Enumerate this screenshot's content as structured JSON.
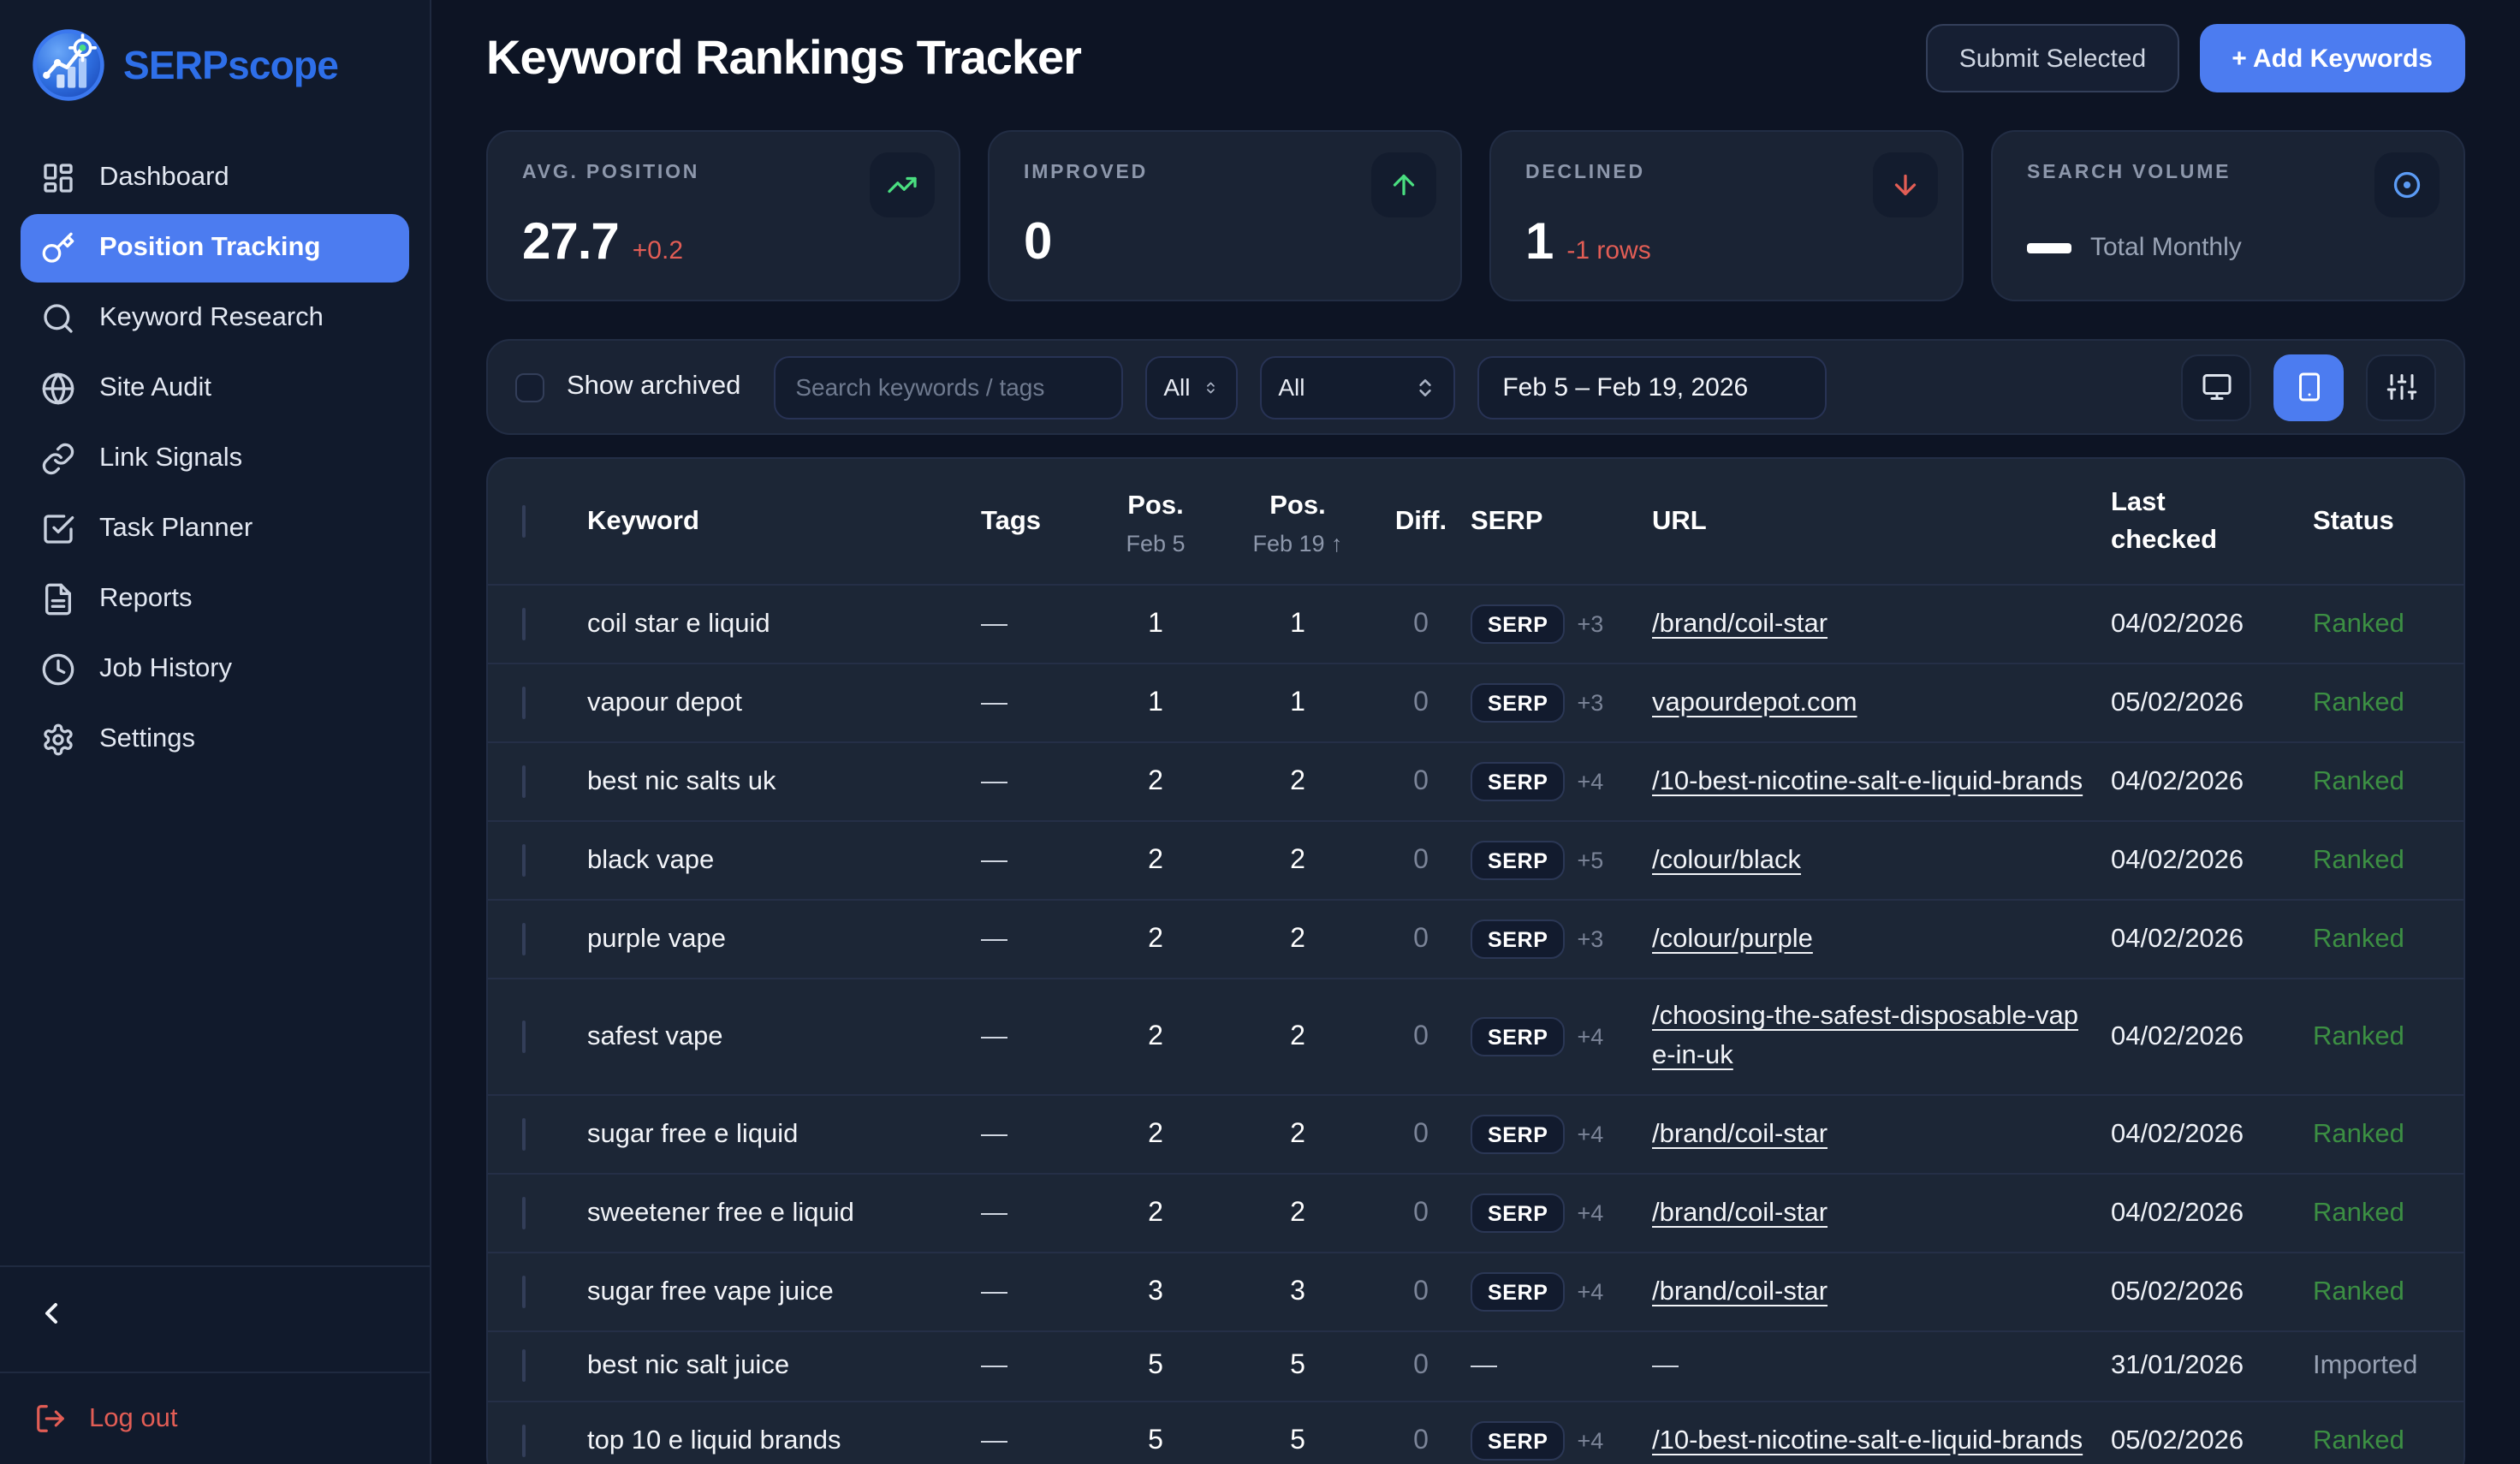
{
  "colors": {
    "accent_blue": "#4c7cf0",
    "negative_red": "#e25d55",
    "positive_green": "#4ade80",
    "status_ranked_green": "#3c8f43",
    "status_imported_gray": "#97a1b3",
    "icon_target_blue": "#5b9bf5",
    "sidebar_bg": "#111a2c",
    "card_bg": "#1a2334"
  },
  "brand": {
    "name": "SERPscope",
    "logo_icon": "chart-target-logo"
  },
  "sidebar": {
    "items": [
      {
        "label": "Dashboard",
        "icon": "dashboard-icon",
        "active": false
      },
      {
        "label": "Position Tracking",
        "icon": "key-icon",
        "active": true
      },
      {
        "label": "Keyword Research",
        "icon": "search-icon",
        "active": false
      },
      {
        "label": "Site Audit",
        "icon": "globe-icon",
        "active": false
      },
      {
        "label": "Link Signals",
        "icon": "link-icon",
        "active": false
      },
      {
        "label": "Task Planner",
        "icon": "check-square-icon",
        "active": false
      },
      {
        "label": "Reports",
        "icon": "file-icon",
        "active": false
      },
      {
        "label": "Job History",
        "icon": "clock-icon",
        "active": false
      },
      {
        "label": "Settings",
        "icon": "gear-icon",
        "active": false
      }
    ],
    "collapse_icon": "chevron-left-icon",
    "logout_label": "Log out",
    "logout_icon": "logout-icon"
  },
  "header": {
    "title": "Keyword Rankings Tracker",
    "submit_button": "Submit Selected",
    "add_button": "+ Add Keywords"
  },
  "stats": [
    {
      "label": "AVG. POSITION",
      "value": "27.7",
      "delta": "+0.2",
      "icon": "trending-up-icon"
    },
    {
      "label": "IMPROVED",
      "value": "0",
      "icon": "arrow-up-icon"
    },
    {
      "label": "DECLINED",
      "value": "1",
      "delta": "-1 rows",
      "icon": "arrow-down-icon"
    },
    {
      "label": "SEARCH VOLUME",
      "legend_label": "Total Monthly",
      "icon": "target-icon"
    }
  ],
  "filters": {
    "show_archived_label": "Show archived",
    "search_placeholder": "Search keywords / tags",
    "tag_filter_value": "All",
    "status_filter_value": "All",
    "date_range": "Feb 5 – Feb 19, 2026",
    "view_buttons": [
      "desktop",
      "mobile",
      "columns"
    ],
    "active_view": "mobile"
  },
  "table": {
    "columns": {
      "keyword": "Keyword",
      "tags": "Tags",
      "pos_a": "Pos.",
      "pos_a_sub": "Feb 5",
      "pos_b": "Pos.",
      "pos_b_sub": "Feb 19 ↑",
      "diff": "Diff.",
      "serp": "SERP",
      "url": "URL",
      "last_checked": "Last checked",
      "status": "Status"
    },
    "rows": [
      {
        "keyword": "coil star e liquid",
        "tags": "—",
        "pos_a": "1",
        "pos_b": "1",
        "diff": "0",
        "serp_label": "SERP",
        "serp_extra": "+3",
        "url": "/brand/coil-star",
        "url_link": true,
        "last_checked": "04/02/2026",
        "status": "Ranked",
        "status_color": "green"
      },
      {
        "keyword": "vapour depot",
        "tags": "—",
        "pos_a": "1",
        "pos_b": "1",
        "diff": "0",
        "serp_label": "SERP",
        "serp_extra": "+3",
        "url": "vapourdepot.com",
        "url_link": true,
        "last_checked": "05/02/2026",
        "status": "Ranked",
        "status_color": "green"
      },
      {
        "keyword": "best nic salts uk",
        "tags": "—",
        "pos_a": "2",
        "pos_b": "2",
        "diff": "0",
        "serp_label": "SERP",
        "serp_extra": "+4",
        "url": "/10-best-nicotine-salt-e-liquid-brands",
        "url_link": true,
        "last_checked": "04/02/2026",
        "status": "Ranked",
        "status_color": "green"
      },
      {
        "keyword": "black vape",
        "tags": "—",
        "pos_a": "2",
        "pos_b": "2",
        "diff": "0",
        "serp_label": "SERP",
        "serp_extra": "+5",
        "url": "/colour/black",
        "url_link": true,
        "last_checked": "04/02/2026",
        "status": "Ranked",
        "status_color": "green"
      },
      {
        "keyword": "purple vape",
        "tags": "—",
        "pos_a": "2",
        "pos_b": "2",
        "diff": "0",
        "serp_label": "SERP",
        "serp_extra": "+3",
        "url": "/colour/purple",
        "url_link": true,
        "last_checked": "04/02/2026",
        "status": "Ranked",
        "status_color": "green"
      },
      {
        "keyword": "safest vape",
        "tags": "—",
        "pos_a": "2",
        "pos_b": "2",
        "diff": "0",
        "serp_label": "SERP",
        "serp_extra": "+4",
        "url": "/choosing-the-safest-disposable-vape-in-uk",
        "url_link": true,
        "last_checked": "04/02/2026",
        "status": "Ranked",
        "status_color": "green"
      },
      {
        "keyword": "sugar free e liquid",
        "tags": "—",
        "pos_a": "2",
        "pos_b": "2",
        "diff": "0",
        "serp_label": "SERP",
        "serp_extra": "+4",
        "url": "/brand/coil-star",
        "url_link": true,
        "last_checked": "04/02/2026",
        "status": "Ranked",
        "status_color": "green"
      },
      {
        "keyword": "sweetener free e liquid",
        "tags": "—",
        "pos_a": "2",
        "pos_b": "2",
        "diff": "0",
        "serp_label": "SERP",
        "serp_extra": "+4",
        "url": "/brand/coil-star",
        "url_link": true,
        "last_checked": "04/02/2026",
        "status": "Ranked",
        "status_color": "green"
      },
      {
        "keyword": "sugar free vape juice",
        "tags": "—",
        "pos_a": "3",
        "pos_b": "3",
        "diff": "0",
        "serp_label": "SERP",
        "serp_extra": "+4",
        "url": "/brand/coil-star",
        "url_link": true,
        "last_checked": "05/02/2026",
        "status": "Ranked",
        "status_color": "green"
      },
      {
        "keyword": "best nic salt juice",
        "tags": "—",
        "pos_a": "5",
        "pos_b": "5",
        "diff": "0",
        "serp_label": null,
        "serp_extra": "—",
        "url": "—",
        "url_link": false,
        "last_checked": "31/01/2026",
        "status": "Imported",
        "status_color": "muted"
      },
      {
        "keyword": "top 10 e liquid brands",
        "tags": "—",
        "pos_a": "5",
        "pos_b": "5",
        "diff": "0",
        "serp_label": "SERP",
        "serp_extra": "+4",
        "url": "/10-best-nicotine-salt-e-liquid-brands",
        "url_link": true,
        "last_checked": "05/02/2026",
        "status": "Ranked",
        "status_color": "green"
      }
    ]
  }
}
